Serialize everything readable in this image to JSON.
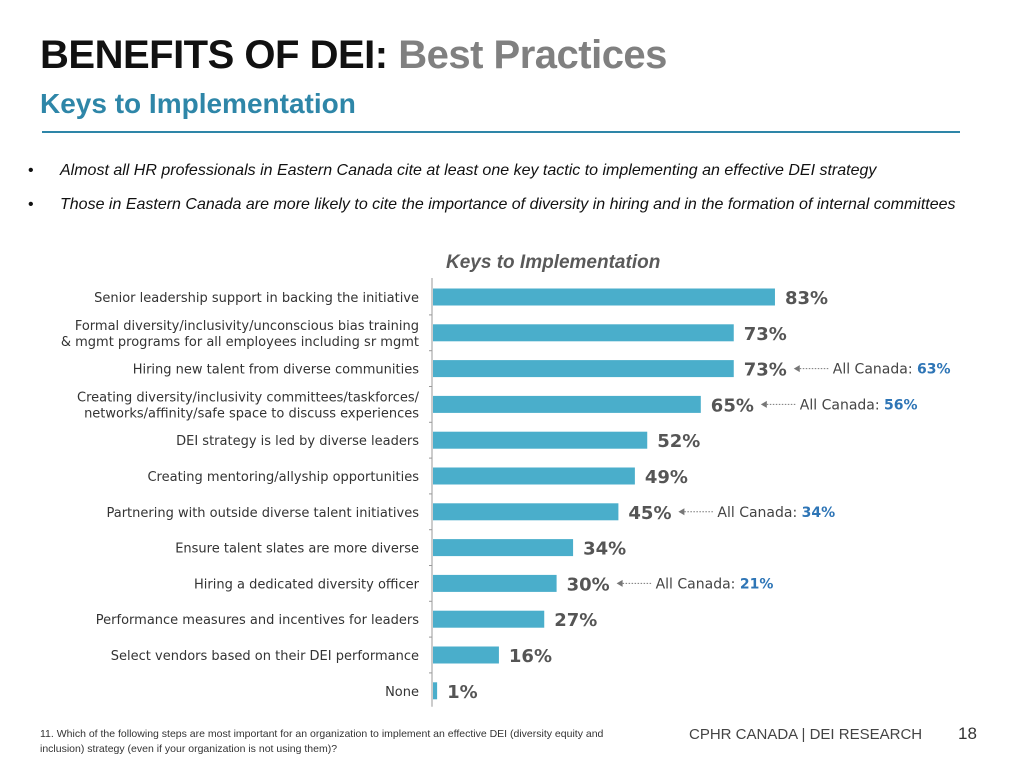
{
  "header": {
    "title_main": "BENEFITS OF DEI:",
    "title_sub": "Best Practices",
    "subtitle": "Keys to Implementation"
  },
  "bullets": [
    "Almost all HR professionals in Eastern Canada cite at least one key tactic to implementing an effective DEI strategy",
    "Those in Eastern Canada are more likely to cite the importance of diversity in hiring and in the formation of internal committees"
  ],
  "chart_data": {
    "type": "bar",
    "orientation": "horizontal",
    "title": "Keys to Implementation",
    "categories": [
      [
        "Senior leadership support in backing the initiative"
      ],
      [
        "Formal diversity/inclusivity/unconscious bias training",
        "& mgmt programs for all employees including sr mgmt"
      ],
      [
        "Hiring new talent from diverse communities"
      ],
      [
        "Creating diversity/inclusivity committees/taskforces/",
        "networks/affinity/safe space to discuss experiences"
      ],
      [
        "DEI strategy is led by diverse leaders"
      ],
      [
        "Creating mentoring/allyship opportunities"
      ],
      [
        "Partnering with outside diverse talent initiatives"
      ],
      [
        "Ensure talent slates are more diverse"
      ],
      [
        "Hiring a dedicated diversity officer"
      ],
      [
        "Performance measures and incentives for leaders"
      ],
      [
        "Select vendors based on their DEI performance"
      ],
      [
        "None"
      ]
    ],
    "values": [
      83,
      73,
      73,
      65,
      52,
      49,
      45,
      34,
      30,
      27,
      16,
      1
    ],
    "value_suffix": "%",
    "xlim": [
      0,
      100
    ],
    "bar_color": "#4aaecb",
    "annotations": [
      {
        "index": 2,
        "label": "All Canada:",
        "value": "63%"
      },
      {
        "index": 3,
        "label": "All Canada:",
        "value": "56%"
      },
      {
        "index": 6,
        "label": "All Canada:",
        "value": "34%"
      },
      {
        "index": 8,
        "label": "All Canada:",
        "value": "21%"
      }
    ]
  },
  "footer": {
    "footnote": "11.  Which of the following steps are most important for an organization to implement an effective DEI (diversity equity and inclusion) strategy (even if your organization is not using them)?",
    "brand": "CPHR CANADA | DEI RESEARCH",
    "page_number": "18"
  },
  "colors": {
    "accent": "#2e86a8",
    "annotation_value": "#2e75b6"
  }
}
